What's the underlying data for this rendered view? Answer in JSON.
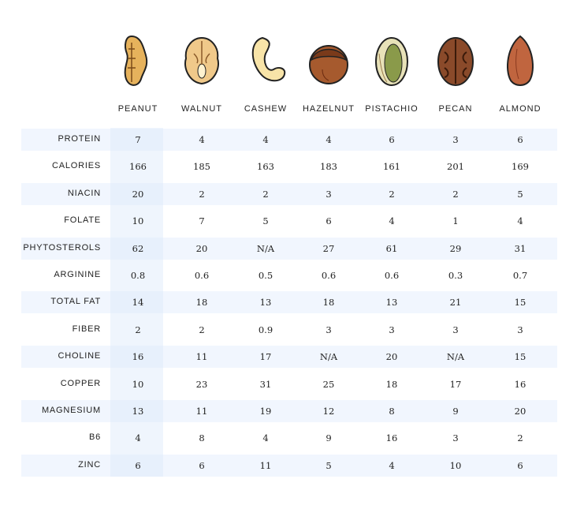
{
  "columns": [
    {
      "name": "PEANUT",
      "color": "#e6b25c"
    },
    {
      "name": "WALNUT",
      "color": "#f0c98a"
    },
    {
      "name": "CASHEW",
      "color": "#f8e4a8"
    },
    {
      "name": "HAZELNUT",
      "color": "#a65a2e"
    },
    {
      "name": "PISTACHIO",
      "color": "#c9c38a"
    },
    {
      "name": "PECAN",
      "color": "#8a4a2a"
    },
    {
      "name": "ALMOND",
      "color": "#c0653f"
    }
  ],
  "highlight_column": "PEANUT",
  "colors": {
    "stripe": "#f1f6fe",
    "highlight": "#e4edfb",
    "text": "#222222"
  },
  "rows": [
    {
      "label": "PROTEIN",
      "values": [
        "7",
        "4",
        "4",
        "4",
        "6",
        "3",
        "6"
      ]
    },
    {
      "label": "CALORIES",
      "values": [
        "166",
        "185",
        "163",
        "183",
        "161",
        "201",
        "169"
      ]
    },
    {
      "label": "NIACIN",
      "values": [
        "20",
        "2",
        "2",
        "3",
        "2",
        "2",
        "5"
      ]
    },
    {
      "label": "FOLATE",
      "values": [
        "10",
        "7",
        "5",
        "6",
        "4",
        "1",
        "4"
      ]
    },
    {
      "label": "PHYTOSTEROLS",
      "values": [
        "62",
        "20",
        "N/A",
        "27",
        "61",
        "29",
        "31"
      ]
    },
    {
      "label": "ARGININE",
      "values": [
        "0.8",
        "0.6",
        "0.5",
        "0.6",
        "0.6",
        "0.3",
        "0.7"
      ]
    },
    {
      "label": "TOTAL FAT",
      "values": [
        "14",
        "18",
        "13",
        "18",
        "13",
        "21",
        "15"
      ]
    },
    {
      "label": "FIBER",
      "values": [
        "2",
        "2",
        "0.9",
        "3",
        "3",
        "3",
        "3"
      ]
    },
    {
      "label": "CHOLINE",
      "values": [
        "16",
        "11",
        "17",
        "N/A",
        "20",
        "N/A",
        "15"
      ]
    },
    {
      "label": "COPPER",
      "values": [
        "10",
        "23",
        "31",
        "25",
        "18",
        "17",
        "16"
      ]
    },
    {
      "label": "MAGNESIUM",
      "values": [
        "13",
        "11",
        "19",
        "12",
        "8",
        "9",
        "20"
      ]
    },
    {
      "label": "B6",
      "values": [
        "4",
        "8",
        "4",
        "9",
        "16",
        "3",
        "2"
      ]
    },
    {
      "label": "ZINC",
      "values": [
        "6",
        "6",
        "11",
        "5",
        "4",
        "10",
        "6"
      ]
    }
  ]
}
